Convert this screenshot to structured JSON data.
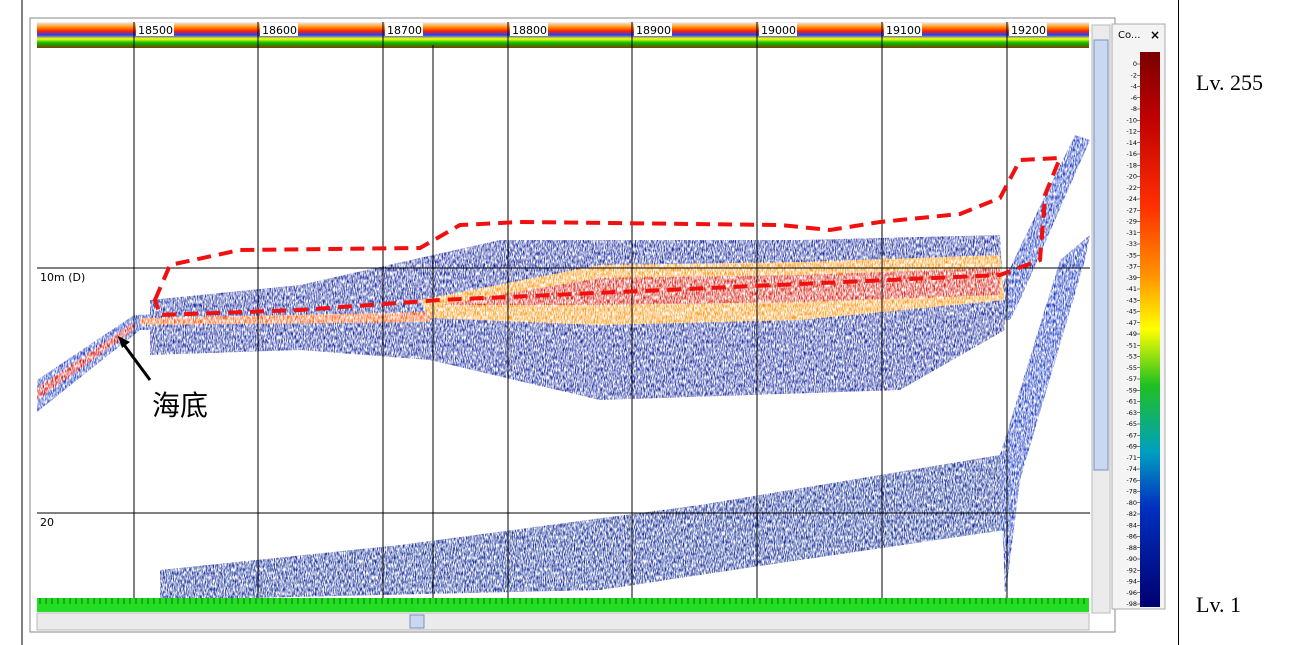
{
  "ruler": {
    "pings": [
      18500,
      18600,
      18700,
      18800,
      18900,
      19000,
      19100,
      19200
    ]
  },
  "depth_labels": [
    "10m (D)",
    "20"
  ],
  "annotation": "海底",
  "colorbar": {
    "title": "Co...",
    "close": "×",
    "labels": [
      "0",
      "-2",
      "-4",
      "-6",
      "-8",
      "-10",
      "-12",
      "-14",
      "-16",
      "-18",
      "-20",
      "-22",
      "-24",
      "-27",
      "-29",
      "-31",
      "-33",
      "-35",
      "-37",
      "-39",
      "-41",
      "-43",
      "-45",
      "-47",
      "-49",
      "-51",
      "-53",
      "-55",
      "-57",
      "-59",
      "-61",
      "-63",
      "-65",
      "-67",
      "-69",
      "-71",
      "-74",
      "-76",
      "-78",
      "-80",
      "-82",
      "-84",
      "-86",
      "-88",
      "-90",
      "-92",
      "-94",
      "-96",
      "-98"
    ]
  },
  "levels": {
    "top": "Lv. 255",
    "bottom": "Lv. 1"
  }
}
